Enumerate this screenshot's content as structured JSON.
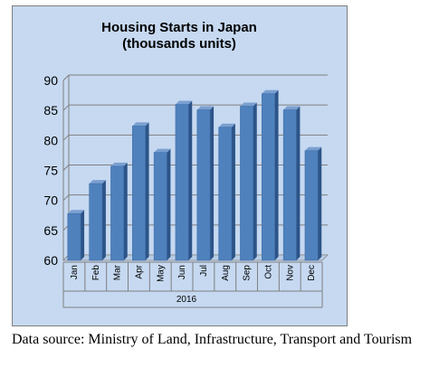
{
  "chart_data": {
    "type": "bar",
    "title": "Housing Starts in Japan",
    "subtitle": "(thousands units)",
    "categories": [
      "Jan",
      "Feb",
      "Mar",
      "Apr",
      "May",
      "Jun",
      "Jul",
      "Aug",
      "Sep",
      "Oct",
      "Nov",
      "Dec"
    ],
    "category_group": "2016",
    "values": [
      67.8,
      72.8,
      75.7,
      82.4,
      78.0,
      86.0,
      85.1,
      82.2,
      85.7,
      87.8,
      85.1,
      78.3
    ],
    "ylim": [
      60,
      90
    ],
    "yticks": [
      60,
      65,
      70,
      75,
      80,
      85,
      90
    ],
    "grid": true,
    "legend": "none",
    "style": "3d-column",
    "colors": {
      "bar_front": "#4f81bd",
      "bar_side": "#2c5488",
      "bar_top": "#7a9fd0",
      "plot_background": "#c6d9f1",
      "wall": "#c6d9f1",
      "gridline": "#7f7f7f"
    }
  },
  "footer": {
    "source_text": "Data source: Ministry of Land, Infrastructure, Transport and Tourism"
  }
}
